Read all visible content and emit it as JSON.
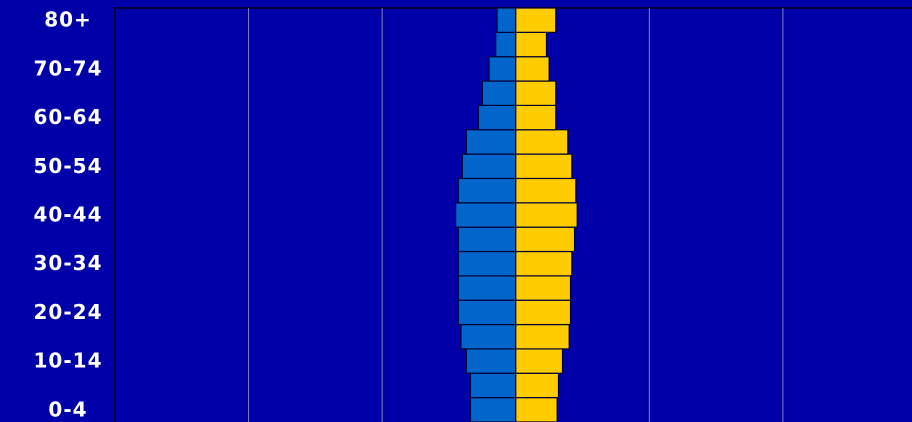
{
  "chart_data": {
    "type": "pyramid",
    "categories": [
      "0-4",
      null,
      "10-14",
      null,
      "20-24",
      null,
      "30-34",
      null,
      "40-44",
      null,
      "50-54",
      null,
      "60-64",
      null,
      "70-74",
      null,
      "80+"
    ],
    "series": [
      {
        "color": "#0066cc",
        "values": [
          0.34,
          0.34,
          0.37,
          0.41,
          0.43,
          0.43,
          0.43,
          0.43,
          0.45,
          0.43,
          0.4,
          0.37,
          0.28,
          0.25,
          0.2,
          0.15,
          0.14
        ]
      },
      {
        "color": "#ffcc00",
        "values": [
          0.31,
          0.32,
          0.35,
          0.4,
          0.41,
          0.41,
          0.42,
          0.44,
          0.46,
          0.45,
          0.42,
          0.39,
          0.3,
          0.3,
          0.25,
          0.23,
          0.3
        ]
      }
    ],
    "xlim": [
      -3,
      3
    ],
    "xticks": [
      -2,
      -1,
      0,
      1,
      2
    ],
    "grid": true
  }
}
